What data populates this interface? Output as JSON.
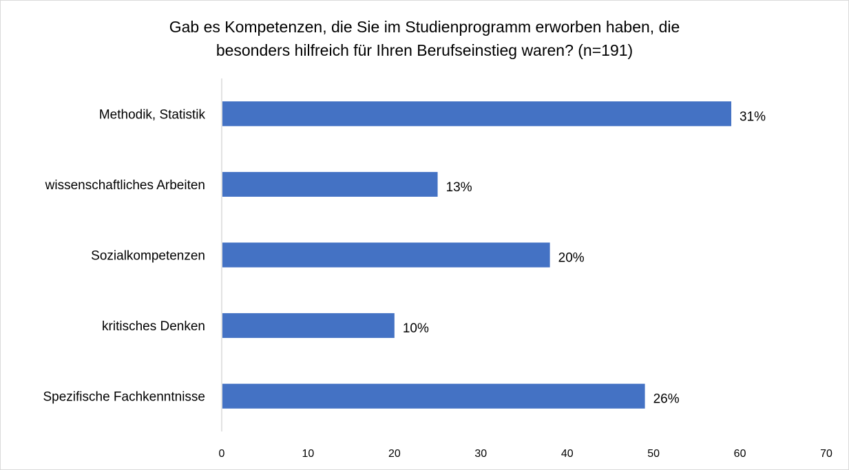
{
  "title_line1": "Gab es Kompetenzen, die Sie im Studienprogramm erworben haben, die",
  "title_line2": "besonders hilfreich für Ihren Berufseinstieg waren? (n=191)",
  "chart_data": {
    "type": "bar",
    "orientation": "horizontal",
    "categories": [
      "Methodik, Statistik",
      "wissenschaftliches Arbeiten",
      "Sozialkompetenzen",
      "kritisches Denken",
      "Spezifische Fachkenntnisse"
    ],
    "values": [
      59,
      25,
      38,
      20,
      49
    ],
    "data_labels": [
      "31%",
      "13%",
      "20%",
      "10%",
      "26%"
    ],
    "xlim": [
      0,
      70
    ],
    "xticks": [
      0,
      10,
      20,
      30,
      40,
      50,
      60,
      70
    ],
    "bar_color": "#4472c4",
    "axis_color": "#d9d9d9",
    "grid": false,
    "legend": "none"
  }
}
